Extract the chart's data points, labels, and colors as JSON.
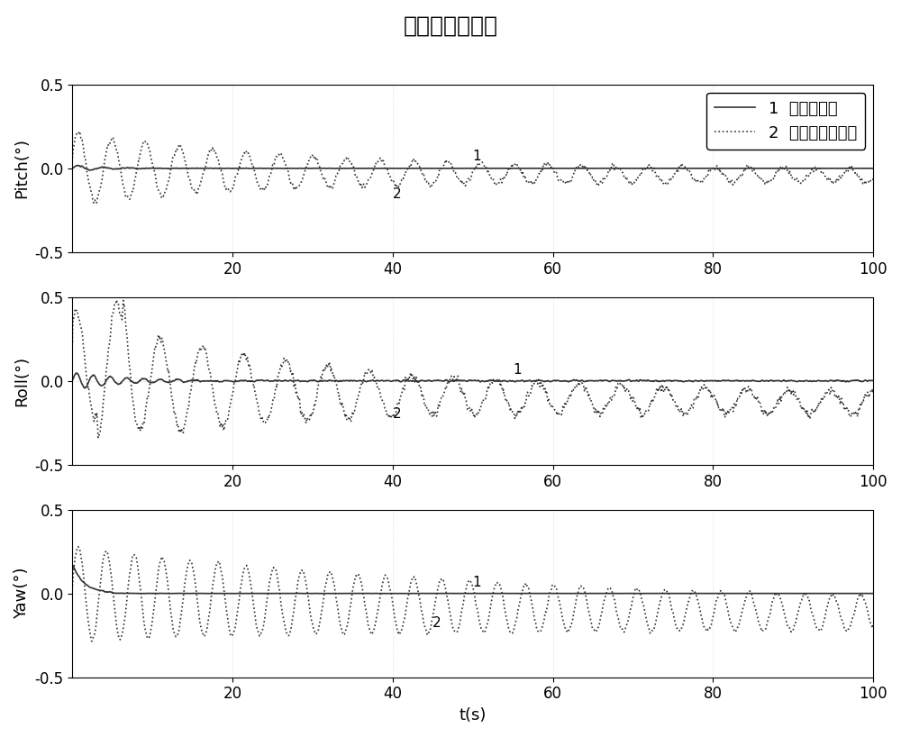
{
  "title": "姿态角估计误差",
  "xlabel": "t(s)",
  "ylabels": [
    "Pitch(°)",
    "Roll(°)",
    "Yaw(°)"
  ],
  "xlim": [
    0,
    100
  ],
  "ylim": [
    -0.5,
    0.5
  ],
  "yticks": [
    -0.5,
    0,
    0.5
  ],
  "xticks": [
    20,
    40,
    60,
    80,
    100
  ],
  "legend_labels": [
    "1  双模型切换",
    "2  四元数误差模型"
  ],
  "line1_color": "#333333",
  "line2_color": "#333333",
  "title_fontsize": 18,
  "label_fontsize": 13,
  "tick_fontsize": 12,
  "legend_fontsize": 13,
  "background_color": "#ffffff",
  "figsize": [
    10.0,
    8.18
  ],
  "dpi": 100
}
